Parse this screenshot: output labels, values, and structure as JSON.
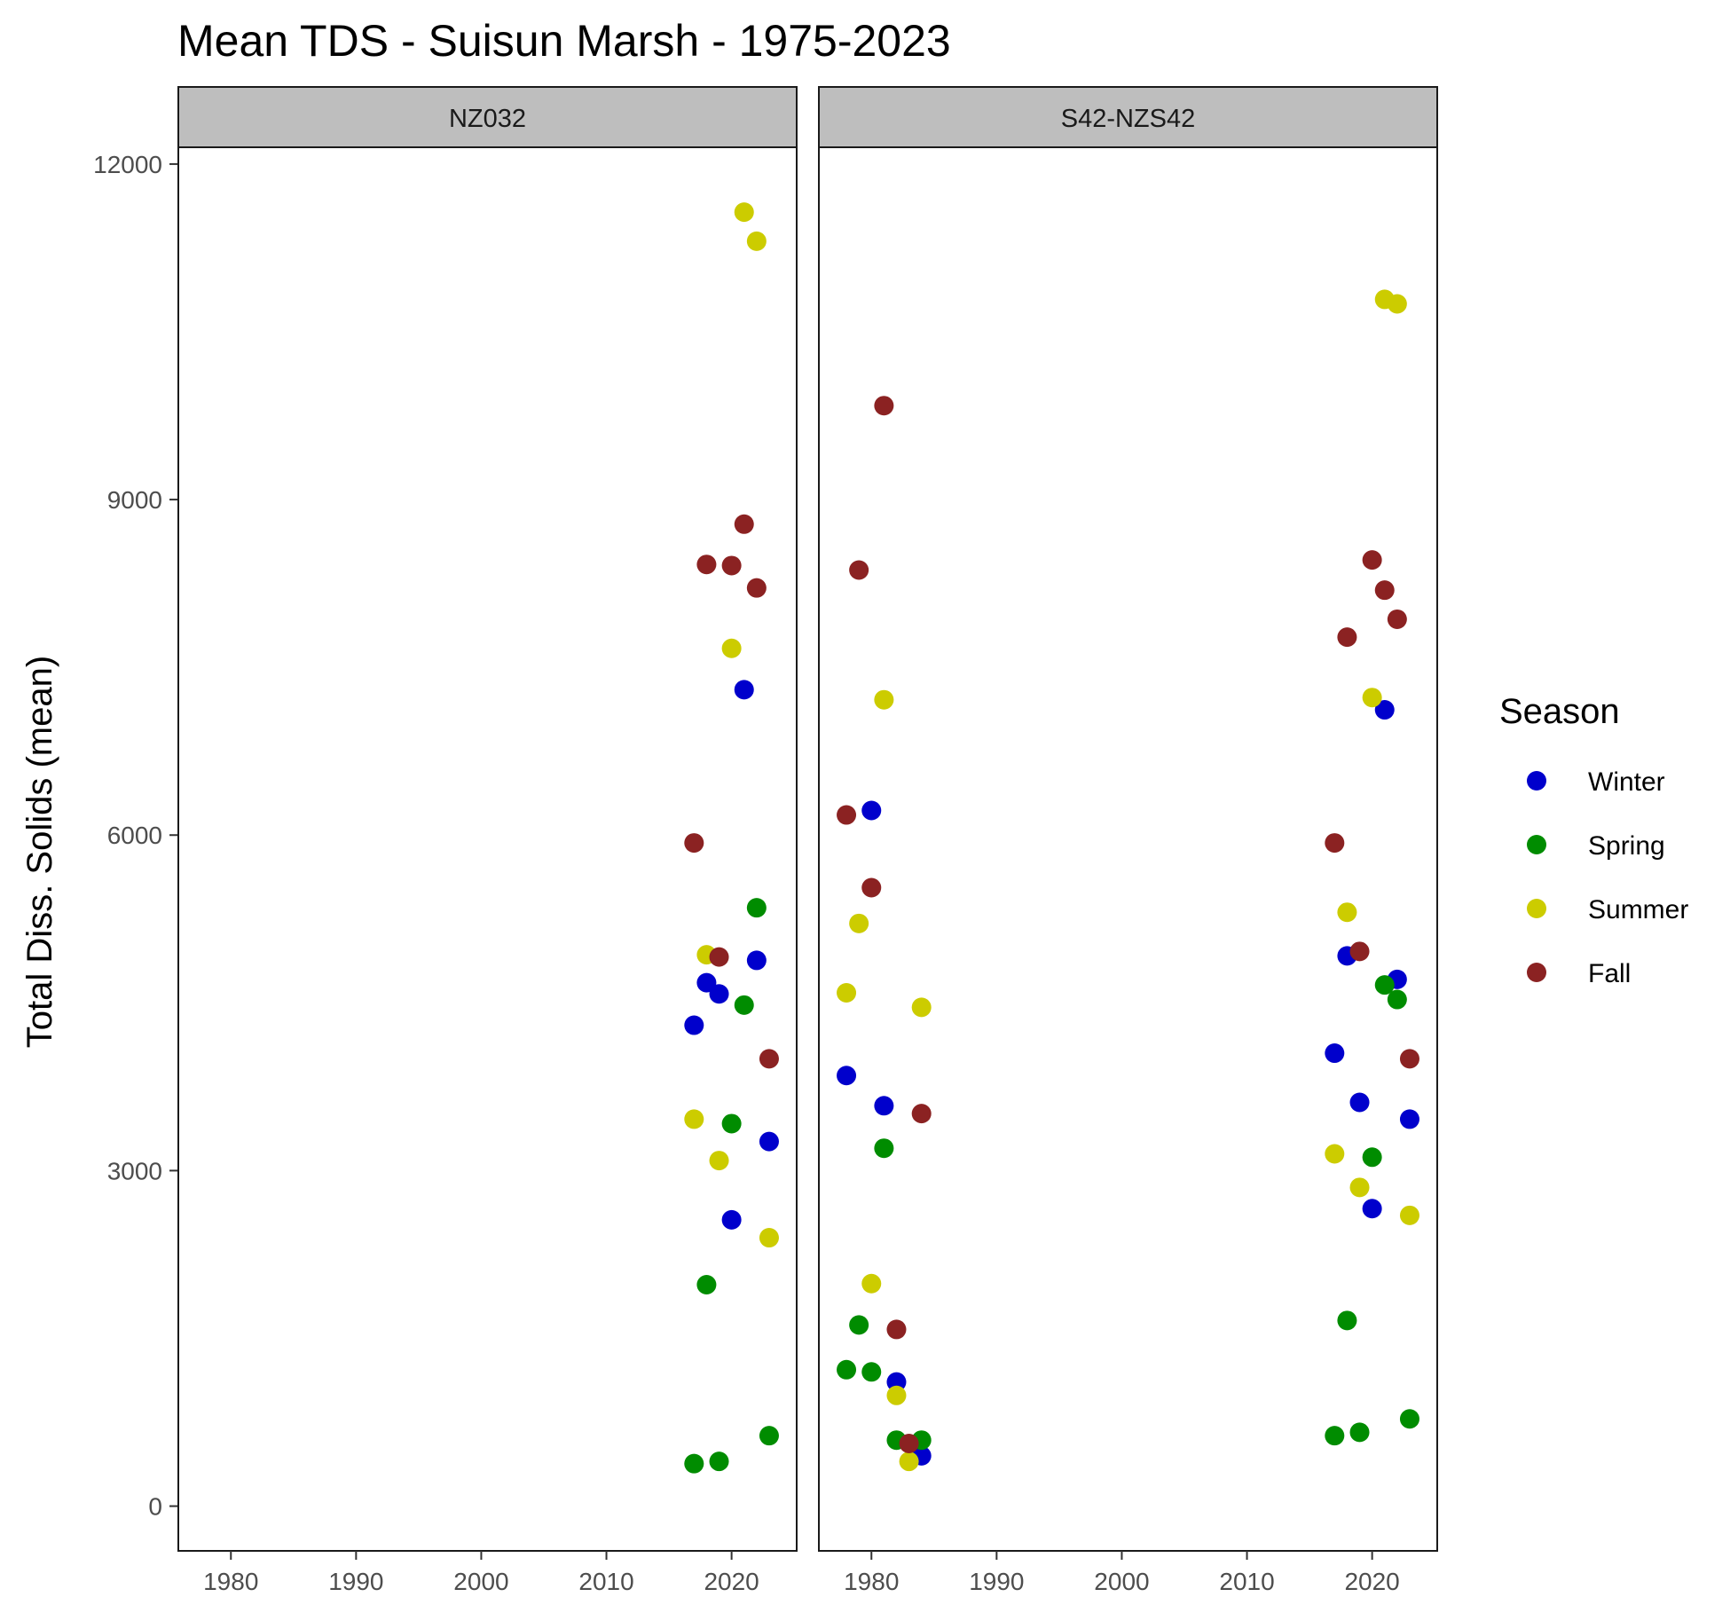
{
  "chart_data": {
    "type": "scatter",
    "title": "Mean TDS - Suisun Marsh - 1975-2023",
    "xlabel": "",
    "ylabel": "Total Diss. Solids (mean)",
    "xlim": [
      1975.8,
      2025.2
    ],
    "ylim": [
      -400,
      12150
    ],
    "x_ticks": [
      1980,
      1990,
      2000,
      2010,
      2020
    ],
    "y_ticks": [
      0,
      3000,
      6000,
      9000,
      12000
    ],
    "grid": false,
    "legend": {
      "title": "Season",
      "placement": "right",
      "entries": [
        {
          "label": "Winter",
          "color": "#0000cc"
        },
        {
          "label": "Spring",
          "color": "#008c00"
        },
        {
          "label": "Summer",
          "color": "#cccc00"
        },
        {
          "label": "Fall",
          "color": "#8b2222"
        }
      ]
    },
    "panels": [
      {
        "name": "NZ032",
        "series": [
          {
            "season": "Winter",
            "points": [
              [
                2017,
                4300
              ],
              [
                2018,
                4680
              ],
              [
                2019,
                4580
              ],
              [
                2020,
                2560
              ],
              [
                2021,
                7300
              ],
              [
                2022,
                4880
              ],
              [
                2023,
                3260
              ]
            ]
          },
          {
            "season": "Spring",
            "points": [
              [
                2017,
                380
              ],
              [
                2018,
                1980
              ],
              [
                2019,
                400
              ],
              [
                2020,
                3420
              ],
              [
                2021,
                4480
              ],
              [
                2022,
                5350
              ],
              [
                2023,
                630
              ]
            ]
          },
          {
            "season": "Summer",
            "points": [
              [
                2017,
                3460
              ],
              [
                2018,
                4930
              ],
              [
                2019,
                3090
              ],
              [
                2020,
                7670
              ],
              [
                2021,
                11570
              ],
              [
                2022,
                11310
              ],
              [
                2023,
                2400
              ]
            ]
          },
          {
            "season": "Fall",
            "points": [
              [
                2017,
                5930
              ],
              [
                2018,
                8420
              ],
              [
                2019,
                4910
              ],
              [
                2020,
                8410
              ],
              [
                2021,
                8780
              ],
              [
                2022,
                8210
              ],
              [
                2023,
                4000
              ]
            ]
          }
        ]
      },
      {
        "name": "S42-NZS42",
        "series": [
          {
            "season": "Winter",
            "points": [
              [
                1978,
                3850
              ],
              [
                1980,
                6220
              ],
              [
                1981,
                3580
              ],
              [
                1982,
                1110
              ],
              [
                1984,
                450
              ],
              [
                2017,
                4050
              ],
              [
                2018,
                4920
              ],
              [
                2019,
                3610
              ],
              [
                2020,
                2660
              ],
              [
                2021,
                7120
              ],
              [
                2022,
                4710
              ],
              [
                2023,
                3460
              ]
            ]
          },
          {
            "season": "Spring",
            "points": [
              [
                1978,
                1220
              ],
              [
                1979,
                1620
              ],
              [
                1980,
                1200
              ],
              [
                1981,
                3200
              ],
              [
                1982,
                590
              ],
              [
                1984,
                590
              ],
              [
                2017,
                630
              ],
              [
                2018,
                1660
              ],
              [
                2019,
                660
              ],
              [
                2020,
                3120
              ],
              [
                2021,
                4660
              ],
              [
                2022,
                4530
              ],
              [
                2023,
                780
              ]
            ]
          },
          {
            "season": "Summer",
            "points": [
              [
                1978,
                4590
              ],
              [
                1979,
                5210
              ],
              [
                1980,
                1990
              ],
              [
                1981,
                7210
              ],
              [
                1982,
                990
              ],
              [
                1983,
                400
              ],
              [
                1984,
                4460
              ],
              [
                2017,
                3150
              ],
              [
                2018,
                5310
              ],
              [
                2019,
                2850
              ],
              [
                2020,
                7230
              ],
              [
                2021,
                10790
              ],
              [
                2022,
                10750
              ],
              [
                2023,
                2600
              ]
            ]
          },
          {
            "season": "Fall",
            "points": [
              [
                1978,
                6180
              ],
              [
                1979,
                8370
              ],
              [
                1980,
                5530
              ],
              [
                1981,
                9840
              ],
              [
                1982,
                1580
              ],
              [
                1983,
                560
              ],
              [
                1984,
                3510
              ],
              [
                2017,
                5930
              ],
              [
                2018,
                7770
              ],
              [
                2019,
                4960
              ],
              [
                2020,
                8460
              ],
              [
                2021,
                8190
              ],
              [
                2022,
                7930
              ],
              [
                2023,
                4000
              ]
            ]
          }
        ]
      }
    ]
  }
}
